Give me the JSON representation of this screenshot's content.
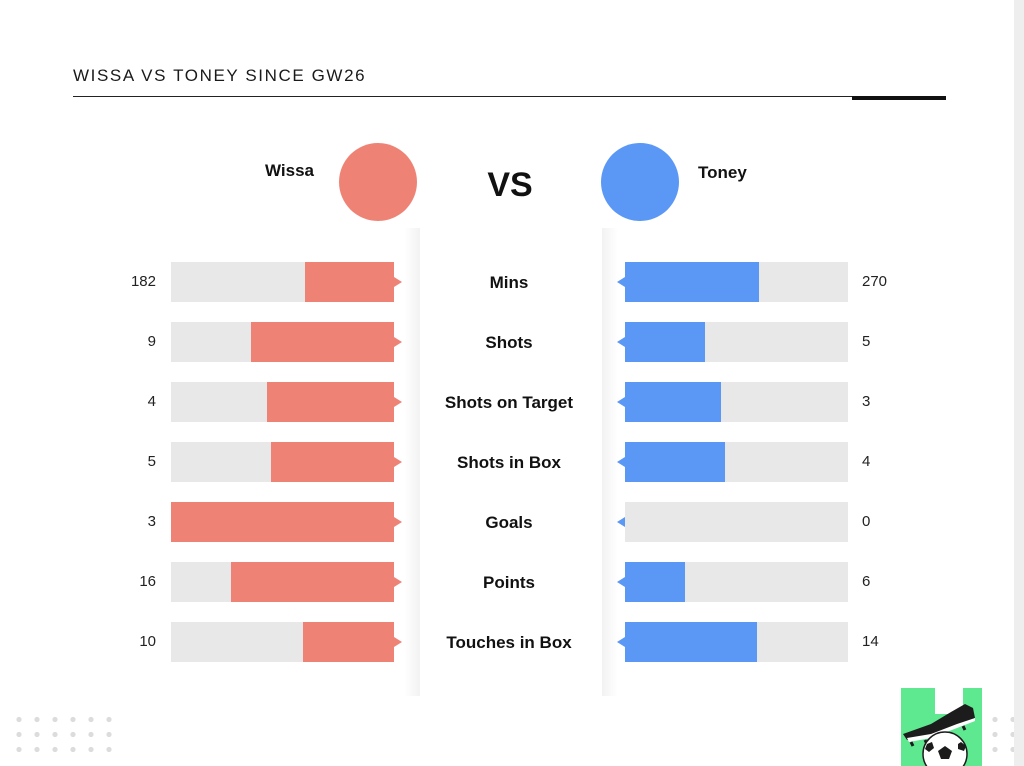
{
  "title": "WISSA VS TONEY SINCE GW26",
  "vs_label": "VS",
  "players": {
    "left": {
      "name": "Wissa",
      "color": "#ee8375"
    },
    "right": {
      "name": "Toney",
      "color": "#5b97f4"
    }
  },
  "colors": {
    "track": "#e8e8e8",
    "accent_left": "#ee8375",
    "accent_right": "#5b97f4"
  },
  "chart_data": {
    "type": "bar",
    "title": "WISSA VS TONEY SINCE GW26",
    "orientation": "horizontal-diverging",
    "categories": [
      "Mins",
      "Shots",
      "Shots on Target",
      "Shots in Box",
      "Goals",
      "Points",
      "Touches in Box"
    ],
    "series": [
      {
        "name": "Wissa",
        "values": [
          182,
          9,
          4,
          5,
          3,
          16,
          10
        ]
      },
      {
        "name": "Toney",
        "values": [
          270,
          5,
          3,
          4,
          0,
          6,
          14
        ]
      }
    ],
    "scale": "each bar relative to combined total of both players per metric",
    "left_fraction": [
      0.4,
      0.64,
      0.57,
      0.55,
      1.0,
      0.73,
      0.41
    ],
    "right_fraction": [
      0.6,
      0.36,
      0.43,
      0.45,
      0.0,
      0.27,
      0.59
    ]
  },
  "icons": [
    "football-boot-icon",
    "soccer-ball-icon"
  ]
}
